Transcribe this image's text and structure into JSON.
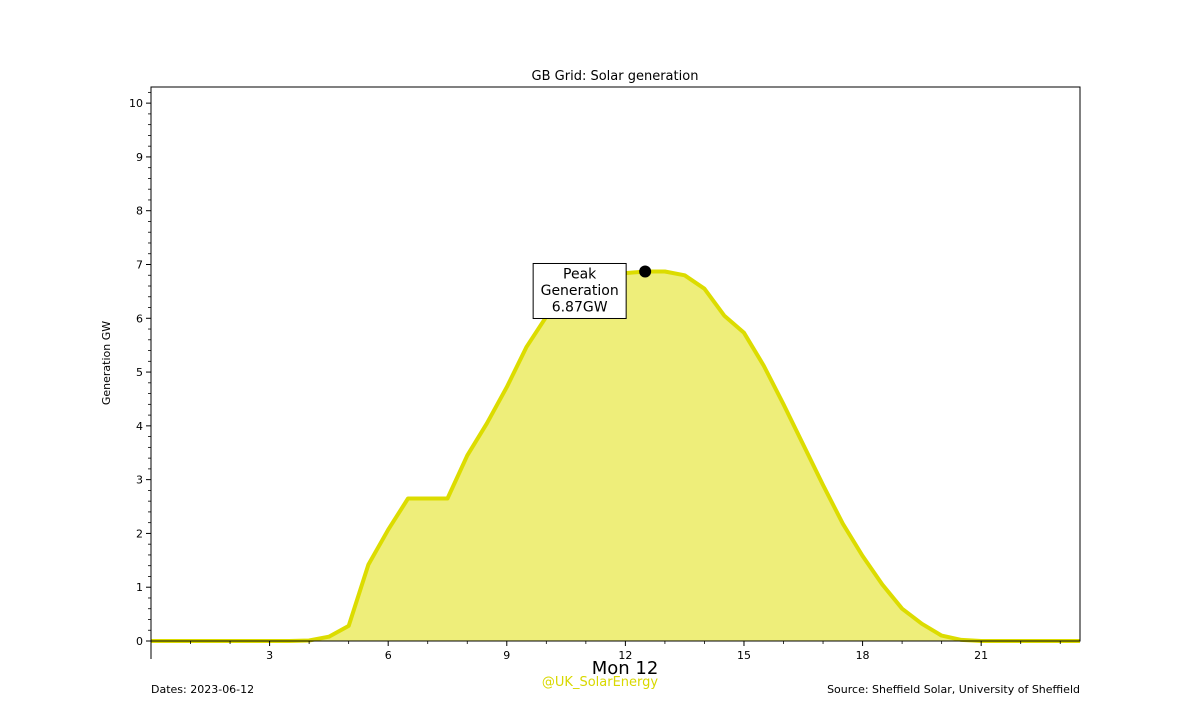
{
  "colors": {
    "line": "#dcdc00",
    "fill": "#eeee7a",
    "axis": "#000000",
    "handle": "#d8d800",
    "marker": "#000000"
  },
  "chart_data": {
    "type": "area",
    "title": "GB Grid: Solar generation",
    "ylabel": "Generation GW",
    "xlabel": "",
    "xlim": [
      0,
      23.5
    ],
    "ylim": [
      0,
      10.3
    ],
    "x_ticks": [
      3,
      6,
      9,
      12,
      15,
      18,
      21
    ],
    "y_ticks": [
      0,
      1,
      2,
      3,
      4,
      5,
      6,
      7,
      8,
      9,
      10
    ],
    "date_label": "Mon 12",
    "grid": false,
    "series": [
      {
        "x": [
          0,
          0.5,
          1,
          1.5,
          2,
          2.5,
          3,
          3.5,
          4,
          4.5,
          5,
          5.5,
          6,
          6.5,
          7,
          7.5,
          8,
          8.5,
          9,
          9.5,
          10,
          10.5,
          11,
          11.5,
          12,
          12.5,
          13,
          13.5,
          14,
          14.5,
          15,
          15.5,
          16,
          16.5,
          17,
          17.5,
          18,
          18.5,
          19,
          19.5,
          20,
          20.5,
          21,
          21.5,
          22,
          22.5,
          23,
          23.5
        ],
        "values": [
          0,
          0,
          0,
          0,
          0,
          0,
          0,
          0,
          0.01,
          0.08,
          0.28,
          1.42,
          2.07,
          2.65,
          2.65,
          2.65,
          3.45,
          4.05,
          4.72,
          5.47,
          6.03,
          6.4,
          6.62,
          6.78,
          6.84,
          6.87,
          6.87,
          6.8,
          6.55,
          6.05,
          5.73,
          5.12,
          4.4,
          3.65,
          2.9,
          2.18,
          1.58,
          1.05,
          0.6,
          0.32,
          0.1,
          0.02,
          0,
          0,
          0,
          0,
          0,
          0
        ]
      }
    ],
    "annotation": {
      "lines": [
        "Peak",
        "Generation",
        "6.87GW"
      ],
      "x": 12.5,
      "y": 6.87
    }
  },
  "footer": {
    "dates": "Dates: 2023-06-12",
    "source": "Source: Sheffield Solar, University of Sheffield",
    "handle": "@UK_SolarEnergy"
  }
}
